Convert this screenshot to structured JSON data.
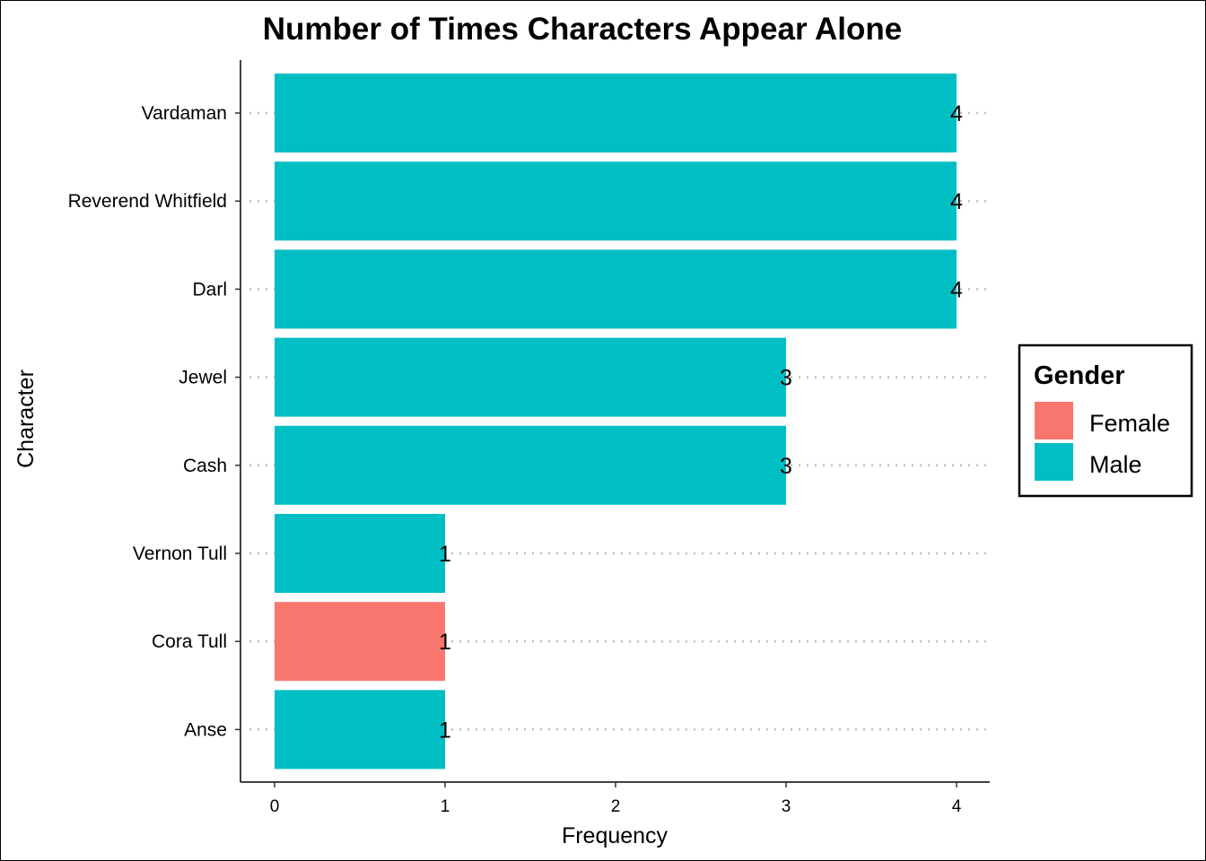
{
  "chart_data": {
    "type": "bar",
    "orientation": "horizontal",
    "title": "Number of Times Characters Appear Alone",
    "xlabel": "Frequency",
    "ylabel": "Character",
    "categories": [
      "Vardaman",
      "Reverend Whitfield",
      "Darl",
      "Jewel",
      "Cash",
      "Vernon Tull",
      "Cora Tull",
      "Anse"
    ],
    "values": [
      4,
      4,
      4,
      3,
      3,
      1,
      1,
      1
    ],
    "gender": [
      "Male",
      "Male",
      "Male",
      "Male",
      "Male",
      "Male",
      "Female",
      "Male"
    ],
    "data_labels": [
      "4",
      "4",
      "4",
      "3",
      "3",
      "1",
      "1",
      "1"
    ],
    "x_ticks": [
      "0",
      "1",
      "2",
      "3",
      "4"
    ],
    "xlim": [
      -0.2,
      4.2
    ],
    "grid": "dotted horizontal major lines",
    "legend": {
      "title": "Gender",
      "position": "right",
      "entries": [
        {
          "label": "Female",
          "color": "#F8766D"
        },
        {
          "label": "Male",
          "color": "#00BFC4"
        }
      ]
    }
  }
}
